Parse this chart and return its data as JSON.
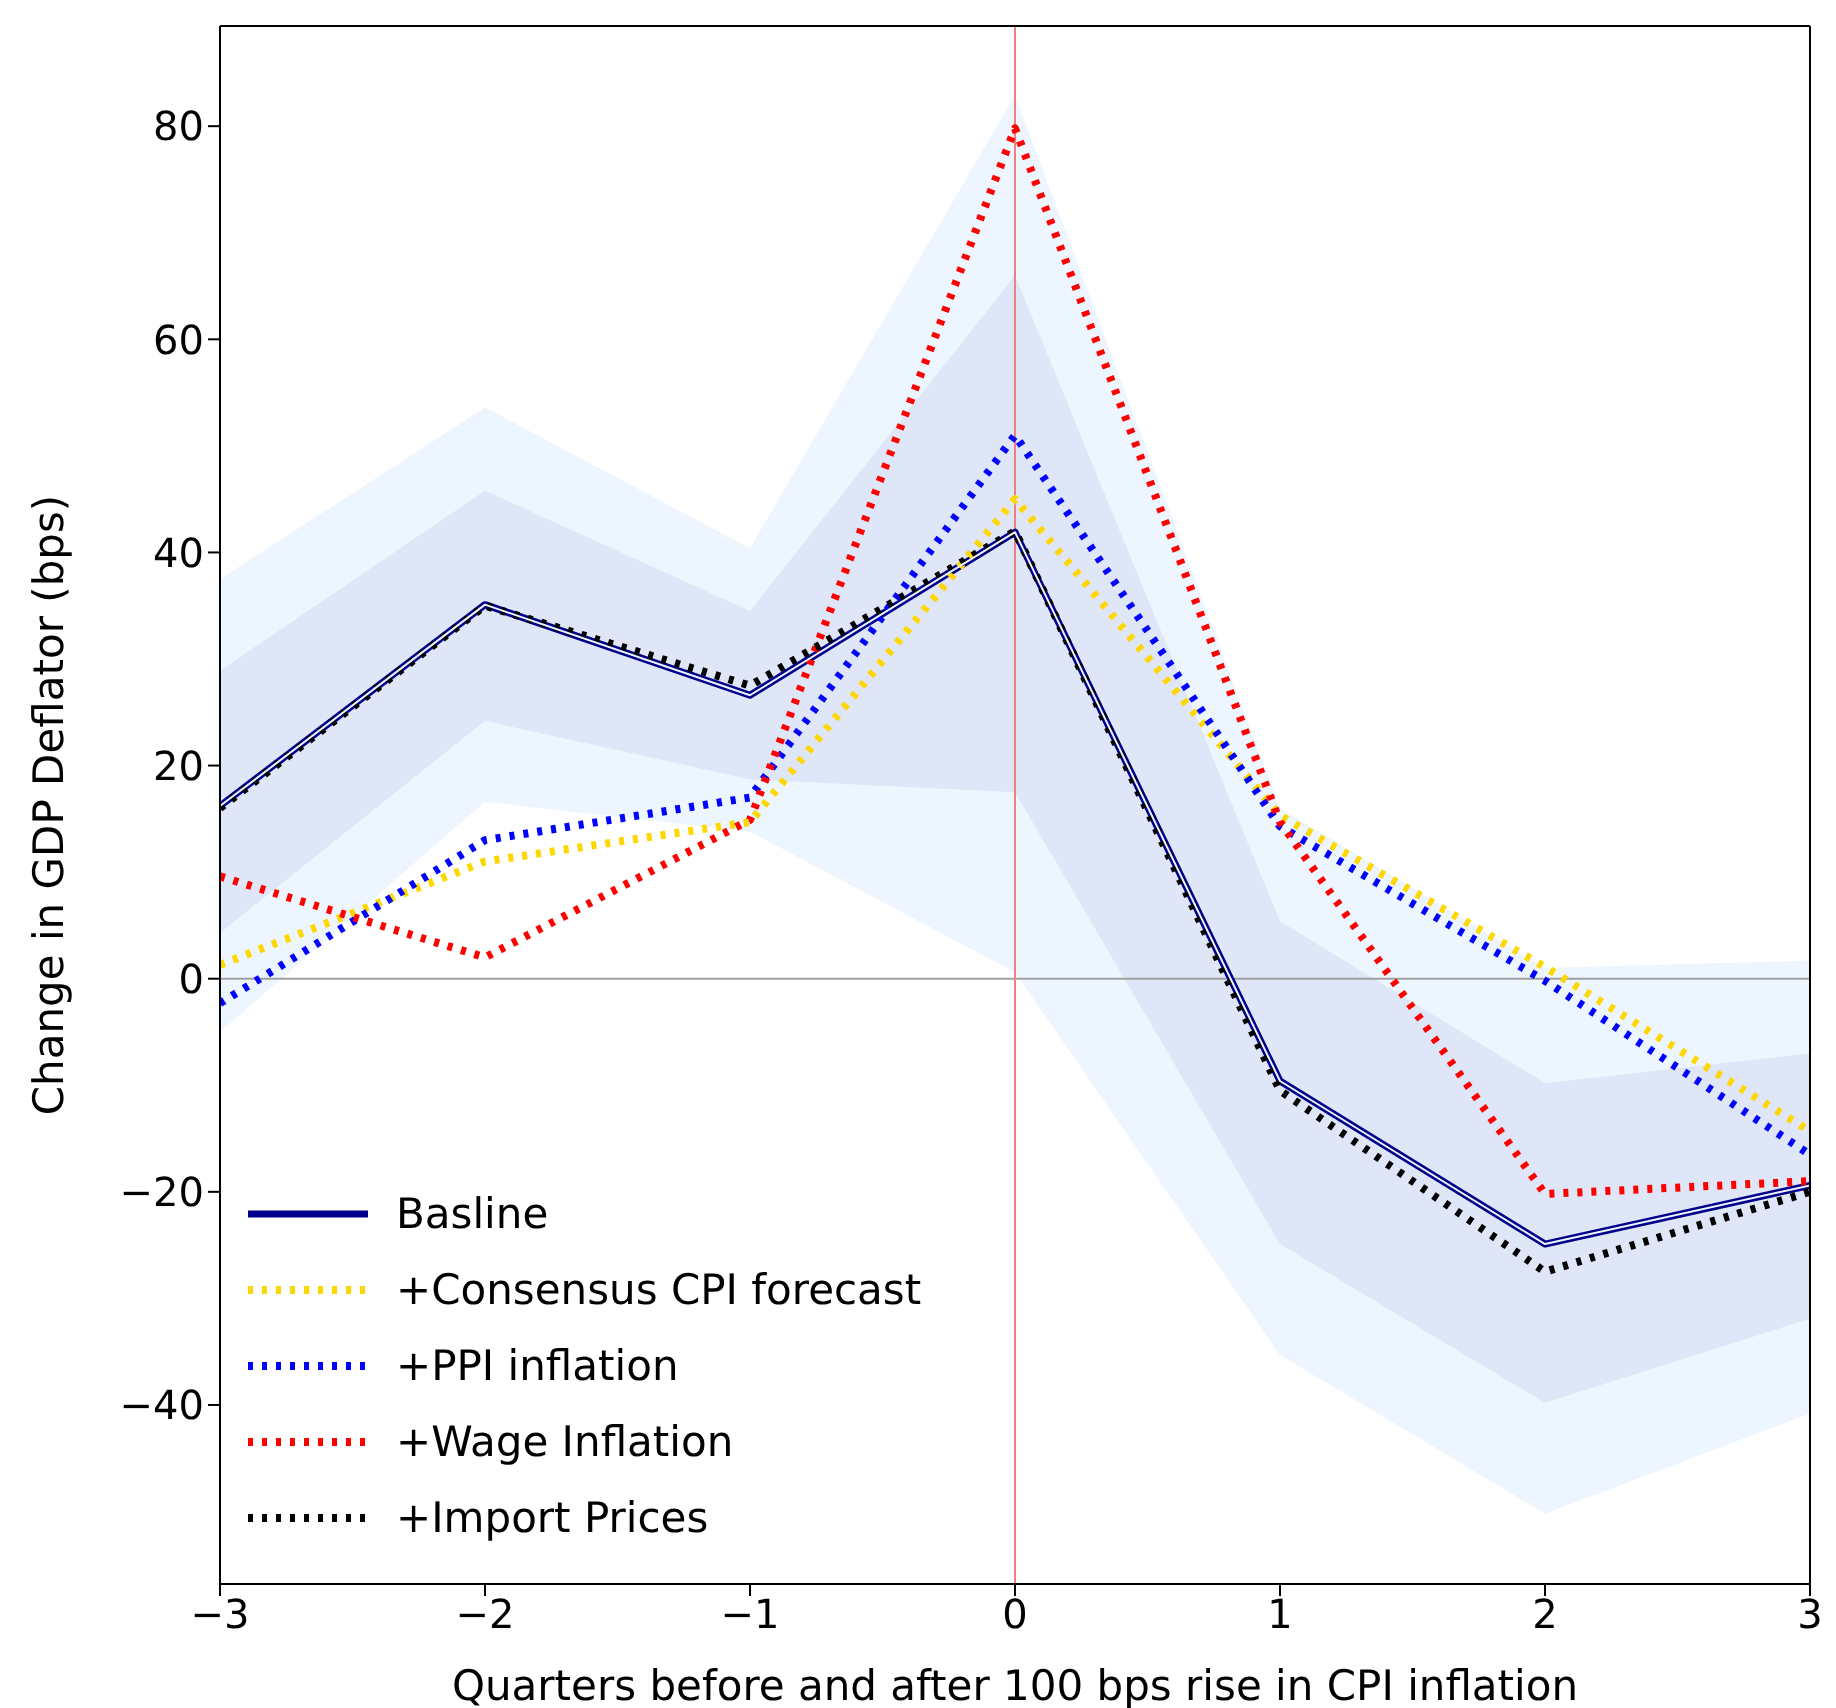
{
  "chart_data": {
    "type": "line",
    "xlabel": "Quarters before and after 100 bps rise in CPI inflation",
    "ylabel": "Change in GDP Deflator (bps)",
    "x": [
      -3,
      -2,
      -1,
      0,
      1,
      2,
      3
    ],
    "xlim": [
      -3,
      3
    ],
    "xticks": [
      {
        "value": -3,
        "label": "−3"
      },
      {
        "value": -2,
        "label": "−2"
      },
      {
        "value": -1,
        "label": "−1"
      },
      0,
      1,
      2,
      3
    ],
    "ylim": [
      -56.8,
      89.4
    ],
    "yticks": [
      {
        "value": -40,
        "label": "−40"
      },
      {
        "value": -20,
        "label": "−20"
      },
      0,
      20,
      40,
      60,
      80
    ],
    "grid": false,
    "legend": "bottom left",
    "marker": "none",
    "series": [
      {
        "color": "#edf5fe",
        "values": [
          16.2,
          35.1,
          26.6,
          41.9,
          -9.6,
          -24.9,
          -19.4
        ],
        "lower": [
          -5,
          16.6,
          13.8,
          0.6,
          -35.3,
          -50.2,
          -40.8
        ],
        "upper": [
          37.5,
          53.6,
          40.4,
          82.9,
          16,
          1,
          1.7
        ]
      },
      {
        "name": "Basline",
        "color": "#00008b",
        "line_style": "solid",
        "values": [
          16.2,
          35.1,
          26.6,
          41.9,
          -9.6,
          -24.9,
          -19.4
        ],
        "lower": [
          4.3,
          24.2,
          18.7,
          17.5,
          -24.9,
          -39.8,
          -31.9
        ],
        "upper": [
          28.9,
          45.8,
          34.5,
          66,
          5.4,
          -9.8,
          -7
        ]
      },
      {
        "name": "+Consensus CPI forecast",
        "color": "#ffd700",
        "line_style": "dotted",
        "values": [
          1.3,
          11,
          14.7,
          45,
          15.3,
          1.1,
          -14.3
        ]
      },
      {
        "name": "+PPI inflation",
        "color": "#0000ff",
        "line_style": "dotted",
        "values": [
          -2.3,
          13,
          17,
          51,
          14.3,
          -0.2,
          -16.5
        ]
      },
      {
        "name": "+Wage Inflation",
        "color": "#ff0000",
        "line_style": "dotted",
        "values": [
          9.6,
          2,
          14.9,
          79.8,
          14.7,
          -20.2,
          -19
        ]
      },
      {
        "name": "+Import Prices",
        "color": "#000000",
        "line_style": "dotted",
        "values": [
          16,
          35,
          27.5,
          42,
          -10.5,
          -27.5,
          -20
        ]
      }
    ],
    "ref_lines": [
      {
        "axis": "y",
        "value": 0,
        "color": "#a0a0a0"
      },
      {
        "axis": "x",
        "value": 0,
        "color": "#f08080"
      }
    ]
  }
}
